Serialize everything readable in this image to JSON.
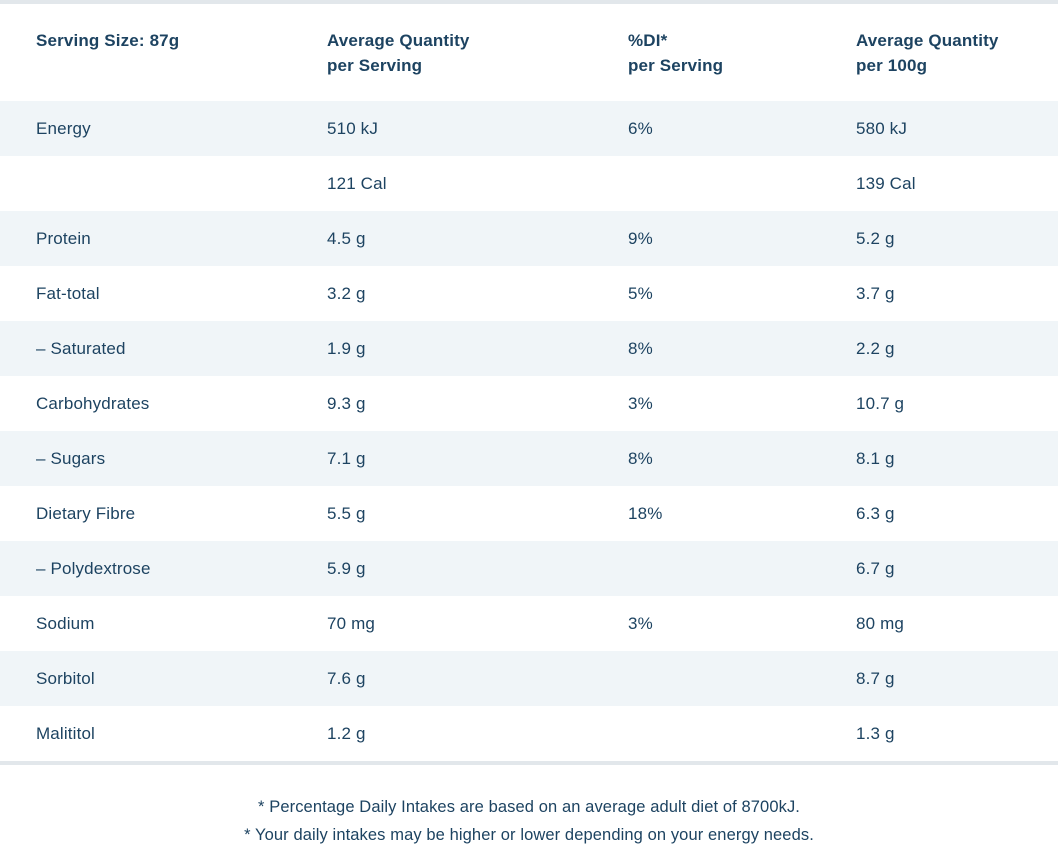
{
  "table": {
    "header": [
      {
        "line1": "Serving Size: 87g",
        "line2": ""
      },
      {
        "line1": "Average Quantity",
        "line2": "per Serving"
      },
      {
        "line1": "%DI*",
        "line2": "per Serving"
      },
      {
        "line1": "Average Quantity",
        "line2": "per 100g"
      }
    ],
    "rows": [
      {
        "nutrient": "Energy",
        "per_serving": "510 kJ",
        "di_per_serving": "6%",
        "per_100g": "580 kJ"
      },
      {
        "nutrient": "",
        "per_serving": "121 Cal",
        "di_per_serving": "",
        "per_100g": "139 Cal"
      },
      {
        "nutrient": "Protein",
        "per_serving": "4.5 g",
        "di_per_serving": "9%",
        "per_100g": "5.2 g"
      },
      {
        "nutrient": "Fat-total",
        "per_serving": "3.2 g",
        "di_per_serving": "5%",
        "per_100g": "3.7 g"
      },
      {
        "nutrient": "– Saturated",
        "per_serving": "1.9 g",
        "di_per_serving": "8%",
        "per_100g": "2.2 g"
      },
      {
        "nutrient": "Carbohydrates",
        "per_serving": "9.3 g",
        "di_per_serving": "3%",
        "per_100g": "10.7 g"
      },
      {
        "nutrient": "– Sugars",
        "per_serving": "7.1 g",
        "di_per_serving": "8%",
        "per_100g": "8.1 g"
      },
      {
        "nutrient": "Dietary Fibre",
        "per_serving": "5.5 g",
        "di_per_serving": "18%",
        "per_100g": "6.3 g"
      },
      {
        "nutrient": "– Polydextrose",
        "per_serving": "5.9 g",
        "di_per_serving": "",
        "per_100g": "6.7 g"
      },
      {
        "nutrient": "Sodium",
        "per_serving": "70 mg",
        "di_per_serving": "3%",
        "per_100g": "80 mg"
      },
      {
        "nutrient": "Sorbitol",
        "per_serving": "7.6 g",
        "di_per_serving": "",
        "per_100g": "8.7 g"
      },
      {
        "nutrient": "Malititol",
        "per_serving": "1.2 g",
        "di_per_serving": "",
        "per_100g": "1.3 g"
      }
    ]
  },
  "footnotes": [
    "* Percentage Daily Intakes are based on an average adult diet of 8700kJ.",
    "* Your daily intakes may be higher or lower depending on your energy needs."
  ],
  "colors": {
    "text_navy": "#1d4361",
    "row_alt_background": "#f0f5f8",
    "row_background": "#ffffff",
    "table_border": "#e2e7eb"
  }
}
